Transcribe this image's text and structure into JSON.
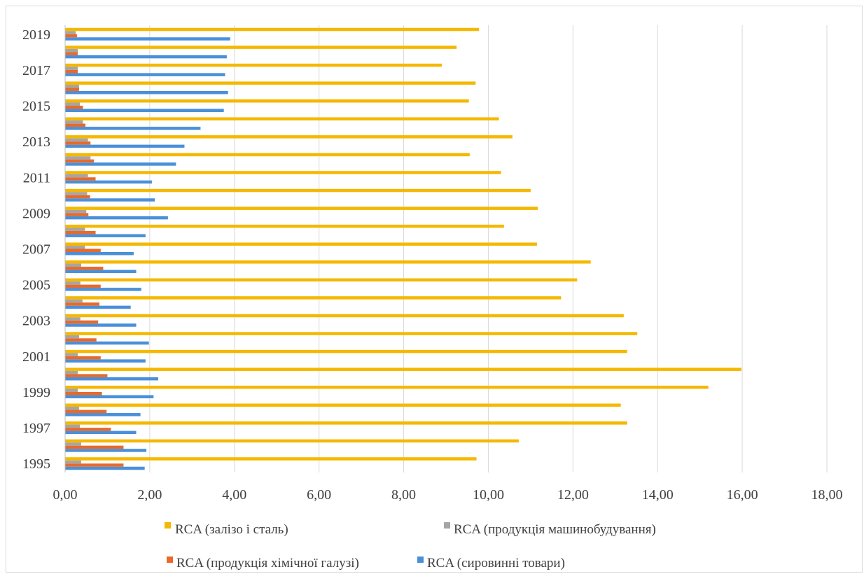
{
  "chart_data": {
    "type": "bar",
    "orientation": "horizontal",
    "categories": [
      "1995",
      "1996",
      "1997",
      "1998",
      "1999",
      "2000",
      "2001",
      "2002",
      "2003",
      "2004",
      "2005",
      "2006",
      "2007",
      "2008",
      "2009",
      "2010",
      "2011",
      "2012",
      "2013",
      "2014",
      "2015",
      "2016",
      "2017",
      "2018",
      "2019"
    ],
    "category_tick_labels": [
      "1995",
      "1997",
      "1999",
      "2001",
      "2003",
      "2005",
      "2007",
      "2009",
      "2011",
      "2013",
      "2015",
      "2017",
      "2019"
    ],
    "series": [
      {
        "name": "RCA (сировинні товари)",
        "color": "#4a90d9",
        "values": [
          1.88,
          1.92,
          1.68,
          1.78,
          2.09,
          2.2,
          1.9,
          1.98,
          1.68,
          1.55,
          1.8,
          1.68,
          1.62,
          1.9,
          2.43,
          2.12,
          2.05,
          2.62,
          2.82,
          3.2,
          3.75,
          3.85,
          3.78,
          3.82,
          3.9
        ]
      },
      {
        "name": "RCA (продукція хімічної галузі)",
        "color": "#e8692a",
        "values": [
          1.38,
          1.38,
          1.08,
          0.98,
          0.87,
          1.0,
          0.84,
          0.74,
          0.78,
          0.81,
          0.84,
          0.9,
          0.84,
          0.72,
          0.55,
          0.59,
          0.72,
          0.68,
          0.6,
          0.48,
          0.42,
          0.33,
          0.3,
          0.3,
          0.28
        ]
      },
      {
        "name": "RCA (продукція машинобудування)",
        "color": "#a5a5a5",
        "values": [
          0.38,
          0.38,
          0.35,
          0.33,
          0.3,
          0.3,
          0.3,
          0.33,
          0.36,
          0.41,
          0.36,
          0.38,
          0.47,
          0.47,
          0.5,
          0.52,
          0.54,
          0.6,
          0.54,
          0.42,
          0.35,
          0.33,
          0.3,
          0.3,
          0.25
        ]
      },
      {
        "name": "RCA (залізо і сталь)",
        "color": "#f5b800",
        "values": [
          9.72,
          10.72,
          13.28,
          13.13,
          15.2,
          15.98,
          13.28,
          13.52,
          13.2,
          11.72,
          12.1,
          12.42,
          11.15,
          10.37,
          11.17,
          11.0,
          10.3,
          9.56,
          10.57,
          10.25,
          9.54,
          9.7,
          8.9,
          9.25,
          9.78
        ]
      }
    ],
    "xlim": [
      0,
      18
    ],
    "x_ticks": [
      0,
      2,
      4,
      6,
      8,
      10,
      12,
      14,
      16,
      18
    ],
    "x_tick_labels": [
      "0,00",
      "2,00",
      "4,00",
      "6,00",
      "8,00",
      "10,00",
      "12,00",
      "14,00",
      "16,00",
      "18,00"
    ],
    "grid": "vertical",
    "legend": {
      "position": "bottom",
      "items": [
        "RCA (залізо і сталь)",
        "RCA (продукція машинобудування)",
        "RCA (продукція хімічної галузі)",
        "RCA (сировинні товари)"
      ]
    },
    "title": "",
    "xlabel": "",
    "ylabel": ""
  }
}
